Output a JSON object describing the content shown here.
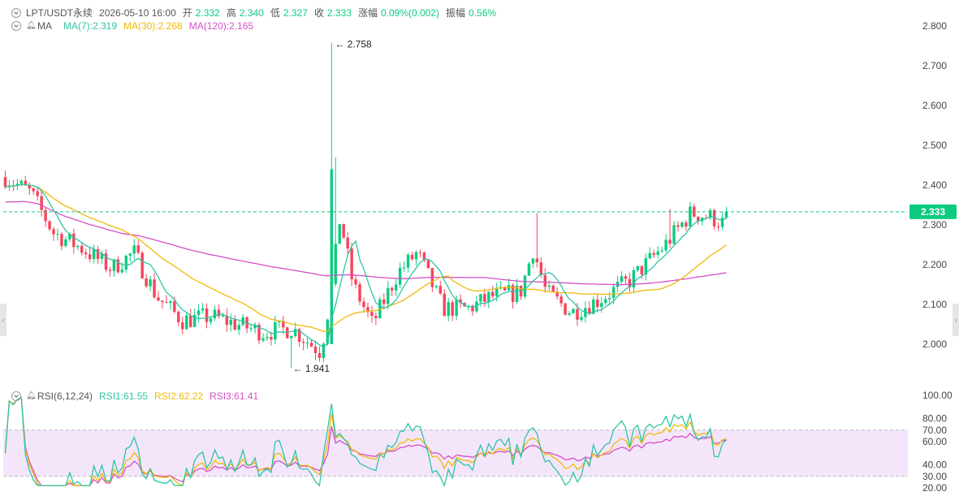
{
  "header": {
    "symbol": "LPT/USDT永续",
    "datetime": "2026-05-10 16:00",
    "open_label": "开",
    "open": "2.332",
    "high_label": "高",
    "high": "2.340",
    "low_label": "低",
    "low": "2.327",
    "close_label": "收",
    "close": "2.333",
    "change_label": "涨幅",
    "change": "0.09%(0.002)",
    "amp_label": "振幅",
    "amp": "0.56%"
  },
  "ma_header": {
    "name": "MA",
    "ma7": "MA(7):2.319",
    "ma30": "MA(30):2.268",
    "ma120": "MA(120):2.165"
  },
  "rsi_header": {
    "name": "RSI(6,12,24)",
    "rsi1": "RSI1:61.55",
    "rsi2": "RSI2:62.22",
    "rsi3": "RSI3:61.41"
  },
  "colors": {
    "up": "#0ecb81",
    "down": "#f6465d",
    "ma7": "#2ec4a6",
    "ma30": "#f0b90b",
    "ma120": "#d64fc6",
    "rsi1": "#2ec4a6",
    "rsi2": "#f0b90b",
    "rsi3": "#d64fc6",
    "rsi_band": "#f3e6fb",
    "price_tag": "#0ecb81"
  },
  "chart_data": [
    {
      "type": "candlestick",
      "title": "LPT/USDT永续",
      "ylim": [
        1.93,
        2.83
      ],
      "yticks": [
        2.0,
        2.1,
        2.2,
        2.3,
        2.4,
        2.5,
        2.6,
        2.7,
        2.8
      ],
      "ytick_labels": [
        "2.000",
        "2.100",
        "2.200",
        "2.300",
        "2.400",
        "2.500",
        "2.600",
        "2.700",
        "2.800"
      ],
      "last_price": 2.333,
      "last_price_label": "2.333",
      "annotations": [
        {
          "text": "← 2.758",
          "value": 2.758
        },
        {
          "text": "← 1.941",
          "value": 1.941
        }
      ],
      "candle_count": 180,
      "close_path": [
        [
          0,
          2.42
        ],
        [
          8,
          2.38
        ],
        [
          15,
          2.28
        ],
        [
          24,
          2.24
        ],
        [
          33,
          2.19
        ],
        [
          40,
          2.23
        ],
        [
          47,
          2.12
        ],
        [
          55,
          2.06
        ],
        [
          64,
          2.07
        ],
        [
          72,
          2.05
        ],
        [
          80,
          2.03
        ],
        [
          89,
          2.04
        ],
        [
          98,
          1.98
        ],
        [
          101,
          2.12
        ],
        [
          104,
          2.32
        ],
        [
          108,
          2.15
        ],
        [
          114,
          2.05
        ],
        [
          122,
          2.18
        ],
        [
          128,
          2.23
        ],
        [
          136,
          2.09
        ],
        [
          144,
          2.09
        ],
        [
          151,
          2.12
        ],
        [
          160,
          2.13
        ],
        [
          164,
          2.24
        ],
        [
          168,
          2.13
        ],
        [
          176,
          2.08
        ],
        [
          184,
          2.11
        ],
        [
          194,
          2.16
        ],
        [
          205,
          2.25
        ],
        [
          213,
          2.33
        ],
        [
          219,
          2.32
        ],
        [
          224,
          2.3
        ]
      ],
      "series": [
        {
          "name": "MA(7)",
          "last": 2.319
        },
        {
          "name": "MA(30)",
          "last": 2.268
        },
        {
          "name": "MA(120)",
          "last": 2.165
        }
      ]
    },
    {
      "type": "line",
      "title": "RSI(6,12,24)",
      "ylim": [
        20,
        100
      ],
      "yticks": [
        20,
        30,
        40,
        60,
        70,
        80,
        100
      ],
      "ytick_labels": [
        "20.00",
        "30.00",
        "40.00",
        "60.00",
        "70.00",
        "80.00",
        "100.00"
      ],
      "band": [
        30,
        70
      ],
      "series": [
        {
          "name": "RSI1",
          "last": 61.55
        },
        {
          "name": "RSI2",
          "last": 62.22
        },
        {
          "name": "RSI3",
          "last": 61.41
        }
      ]
    }
  ]
}
